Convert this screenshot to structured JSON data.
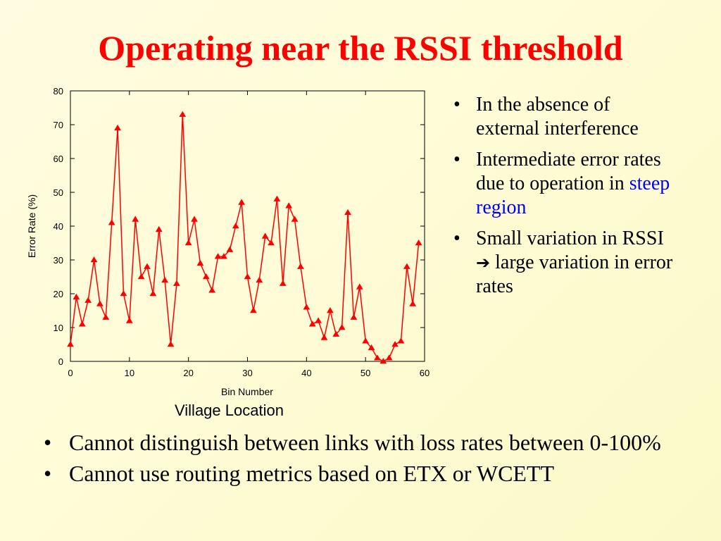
{
  "title": "Operating near the RSSI threshold",
  "chart_caption": "Village Location",
  "right_bullets": {
    "item1": "In the absence of external interference",
    "item2_pre": "Intermediate error rates due to operation in ",
    "item2_hl": "steep region",
    "item3_pre": "Small variation in RSSI ",
    "item3_arrow": "➔",
    "item3_post": " large variation in error rates"
  },
  "bottom_bullets": {
    "item1": "Cannot distinguish between links with loss rates between 0-100%",
    "item2": "Cannot use routing metrics based on ETX or WCETT"
  },
  "colors": {
    "title": "#ff0000",
    "series": "#ff0000",
    "highlight": "#0000ff"
  },
  "chart_data": {
    "type": "line",
    "xlabel": "Bin Number",
    "ylabel": "Error Rate (%)",
    "xlim": [
      0,
      60
    ],
    "ylim": [
      0,
      80
    ],
    "xticks": [
      0,
      10,
      20,
      30,
      40,
      50,
      60
    ],
    "yticks": [
      0,
      10,
      20,
      30,
      40,
      50,
      60,
      70,
      80
    ],
    "grid": false,
    "marker": "triangle",
    "series": [
      {
        "x": [
          0,
          1,
          2,
          3,
          4,
          5,
          6,
          7,
          8,
          9,
          10,
          11,
          12,
          13,
          14,
          15,
          16,
          17,
          18,
          19,
          20,
          21,
          22,
          23,
          24,
          25,
          26,
          27,
          28,
          29,
          30,
          31,
          32,
          33,
          34,
          35,
          36,
          37,
          38,
          39,
          40,
          41,
          42,
          43,
          44,
          45,
          46,
          47,
          48,
          49,
          50,
          51,
          52,
          53,
          54,
          55,
          56,
          57,
          58,
          59
        ],
        "y": [
          5,
          19,
          11,
          18,
          30,
          17,
          13,
          41,
          69,
          20,
          12,
          42,
          25,
          28,
          20,
          39,
          24,
          5,
          23,
          73,
          35,
          42,
          29,
          25,
          21,
          31,
          31,
          33,
          40,
          47,
          25,
          15,
          24,
          37,
          35,
          48,
          23,
          46,
          42,
          28,
          16,
          11,
          12,
          7,
          15,
          8,
          10,
          44,
          13,
          22,
          6,
          4,
          1,
          0,
          1,
          5,
          6,
          28,
          17,
          35
        ]
      }
    ]
  }
}
